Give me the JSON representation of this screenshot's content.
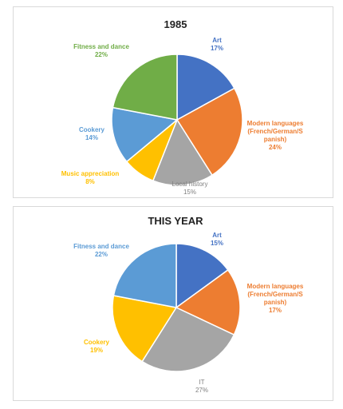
{
  "chart_data": [
    {
      "type": "pie",
      "title": "1985",
      "slices": [
        {
          "label": [
            "Art"
          ],
          "value": 17,
          "display": "17%",
          "color": "#4472C4"
        },
        {
          "label": [
            "Modern languages",
            "(French/German/S",
            "panish)"
          ],
          "value": 24,
          "display": "24%",
          "color": "#ED7D31"
        },
        {
          "label": [
            "Local history"
          ],
          "value": 15,
          "display": "15%",
          "color": "#A5A5A5"
        },
        {
          "label": [
            "Music appreciation"
          ],
          "value": 8,
          "display": "8%",
          "color": "#FFC000"
        },
        {
          "label": [
            "Cookery"
          ],
          "value": 14,
          "display": "14%",
          "color": "#5B9BD5"
        },
        {
          "label": [
            "Fitness and dance"
          ],
          "value": 22,
          "display": "22%",
          "color": "#70AD47"
        }
      ]
    },
    {
      "type": "pie",
      "title": "THIS YEAR",
      "slices": [
        {
          "label": [
            "Art"
          ],
          "value": 15,
          "display": "15%",
          "color": "#4472C4"
        },
        {
          "label": [
            "Modern languages",
            "(French/German/S",
            "panish)"
          ],
          "value": 17,
          "display": "17%",
          "color": "#ED7D31"
        },
        {
          "label": [
            "IT"
          ],
          "value": 27,
          "display": "27%",
          "color": "#A5A5A5"
        },
        {
          "label": [
            "Cookery"
          ],
          "value": 19,
          "display": "19%",
          "color": "#FFC000"
        },
        {
          "label": [
            "Fitness and dance"
          ],
          "value": 22,
          "display": "22%",
          "color": "#5B9BD5"
        }
      ]
    }
  ]
}
